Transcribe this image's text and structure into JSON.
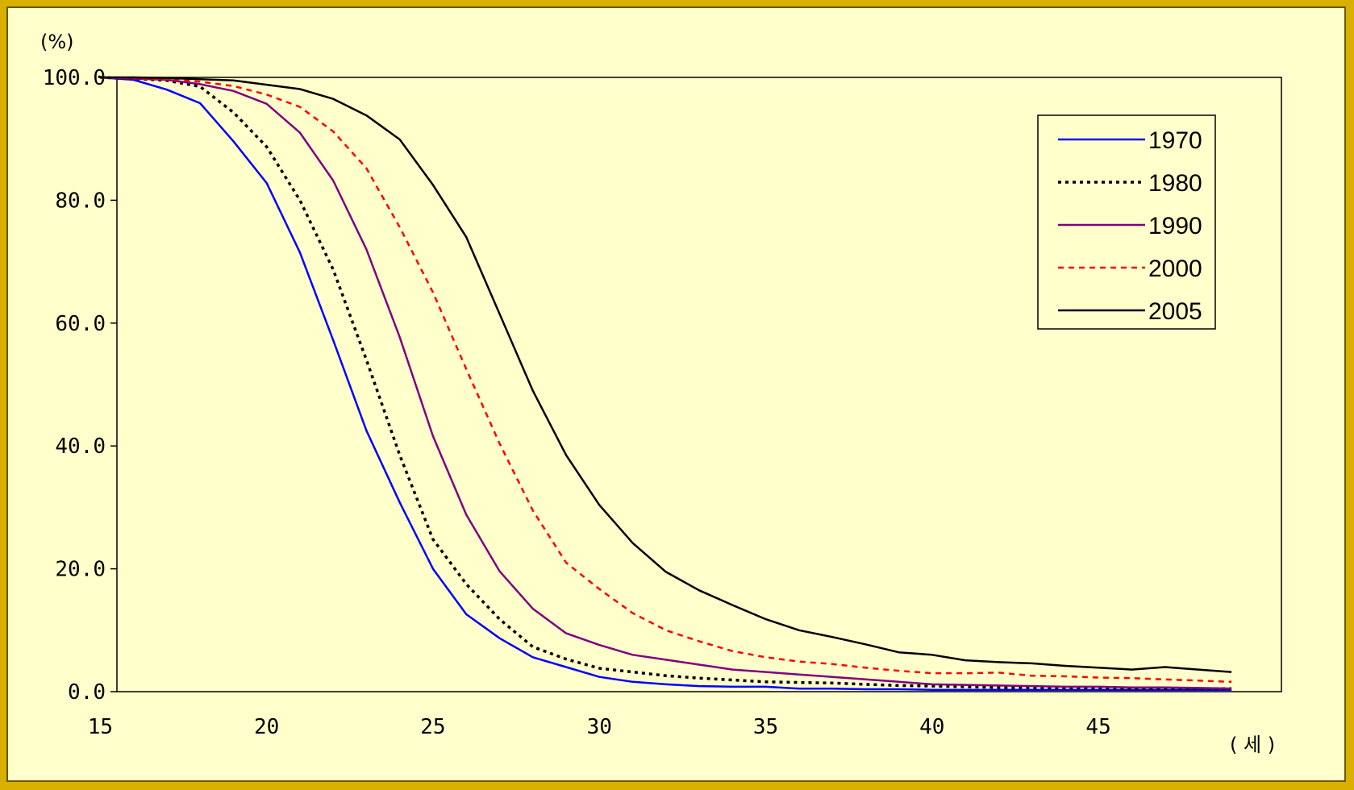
{
  "chart_data": {
    "type": "line",
    "y_unit_label": "(%)",
    "x_unit_label": "( 세 )",
    "xlim": [
      15,
      49
    ],
    "ylim": [
      0,
      100
    ],
    "x_ticks": [
      "15",
      "20",
      "25",
      "30",
      "35",
      "40",
      "45"
    ],
    "y_ticks": [
      "0.0",
      "20.0",
      "40.0",
      "60.0",
      "80.0",
      "100.0"
    ],
    "grid": false,
    "legend_position": "top-right",
    "x": [
      15,
      16,
      17,
      18,
      19,
      20,
      21,
      22,
      23,
      24,
      25,
      26,
      27,
      28,
      29,
      30,
      31,
      32,
      33,
      34,
      35,
      36,
      37,
      38,
      39,
      40,
      41,
      42,
      43,
      44,
      45,
      46,
      47,
      48,
      49
    ],
    "series": [
      {
        "name": "1970",
        "color": "#0000ff",
        "dash": "solid",
        "values": [
          100,
          99.6,
          98,
          95.8,
          89.6,
          82.8,
          71.5,
          57.2,
          42.5,
          30.8,
          20.0,
          12.6,
          8.7,
          5.6,
          4.0,
          2.4,
          1.6,
          1.2,
          0.9,
          0.8,
          0.8,
          0.5,
          0.5,
          0.4,
          0.4,
          0.3,
          0.3,
          0.3,
          0.3,
          0.3,
          0.3,
          0.3,
          0.3,
          0.3,
          0.3
        ]
      },
      {
        "name": "1980",
        "color": "#000000",
        "dash": "dotted",
        "values": [
          100,
          99.8,
          99.5,
          98.5,
          94.3,
          88.7,
          80.0,
          68.7,
          54.0,
          38.5,
          24.8,
          17.5,
          11.8,
          7.3,
          5.3,
          3.8,
          3.2,
          2.6,
          2.2,
          1.9,
          1.6,
          1.5,
          1.4,
          1.2,
          1.0,
          0.9,
          0.8,
          0.7,
          0.7,
          0.6,
          0.6,
          0.5,
          0.5,
          0.5,
          0.5
        ]
      },
      {
        "name": "1990",
        "color": "#800080",
        "dash": "solid",
        "values": [
          100,
          99.8,
          99.6,
          98.9,
          97.8,
          95.7,
          91.0,
          83.2,
          72.0,
          57.7,
          41.6,
          28.8,
          19.6,
          13.5,
          9.5,
          7.6,
          6.0,
          5.2,
          4.4,
          3.6,
          3.2,
          2.8,
          2.4,
          2.0,
          1.6,
          1.2,
          1.1,
          1.0,
          0.9,
          0.8,
          0.8,
          0.7,
          0.7,
          0.6,
          0.5
        ]
      },
      {
        "name": "2000",
        "color": "#ff0000",
        "dash": "dashed",
        "values": [
          100,
          99.9,
          99.7,
          99.3,
          98.6,
          97.2,
          95.2,
          91.2,
          85.2,
          75.6,
          65.0,
          52.5,
          40.4,
          29.5,
          21.0,
          16.7,
          12.8,
          10.0,
          8.2,
          6.6,
          5.6,
          4.9,
          4.5,
          3.9,
          3.4,
          3.0,
          3.0,
          3.1,
          2.6,
          2.5,
          2.3,
          2.2,
          2.0,
          1.8,
          1.6
        ]
      },
      {
        "name": "2005",
        "color": "#000000",
        "dash": "solid",
        "values": [
          100,
          100,
          99.9,
          99.7,
          99.5,
          98.8,
          98.1,
          96.5,
          93.8,
          89.9,
          82.5,
          74.0,
          61.5,
          49.0,
          38.5,
          30.4,
          24.2,
          19.5,
          16.5,
          14.1,
          11.8,
          10.0,
          8.9,
          7.7,
          6.4,
          6.0,
          5.1,
          4.8,
          4.6,
          4.2,
          3.9,
          3.6,
          4.0,
          3.6,
          3.2
        ]
      }
    ]
  }
}
